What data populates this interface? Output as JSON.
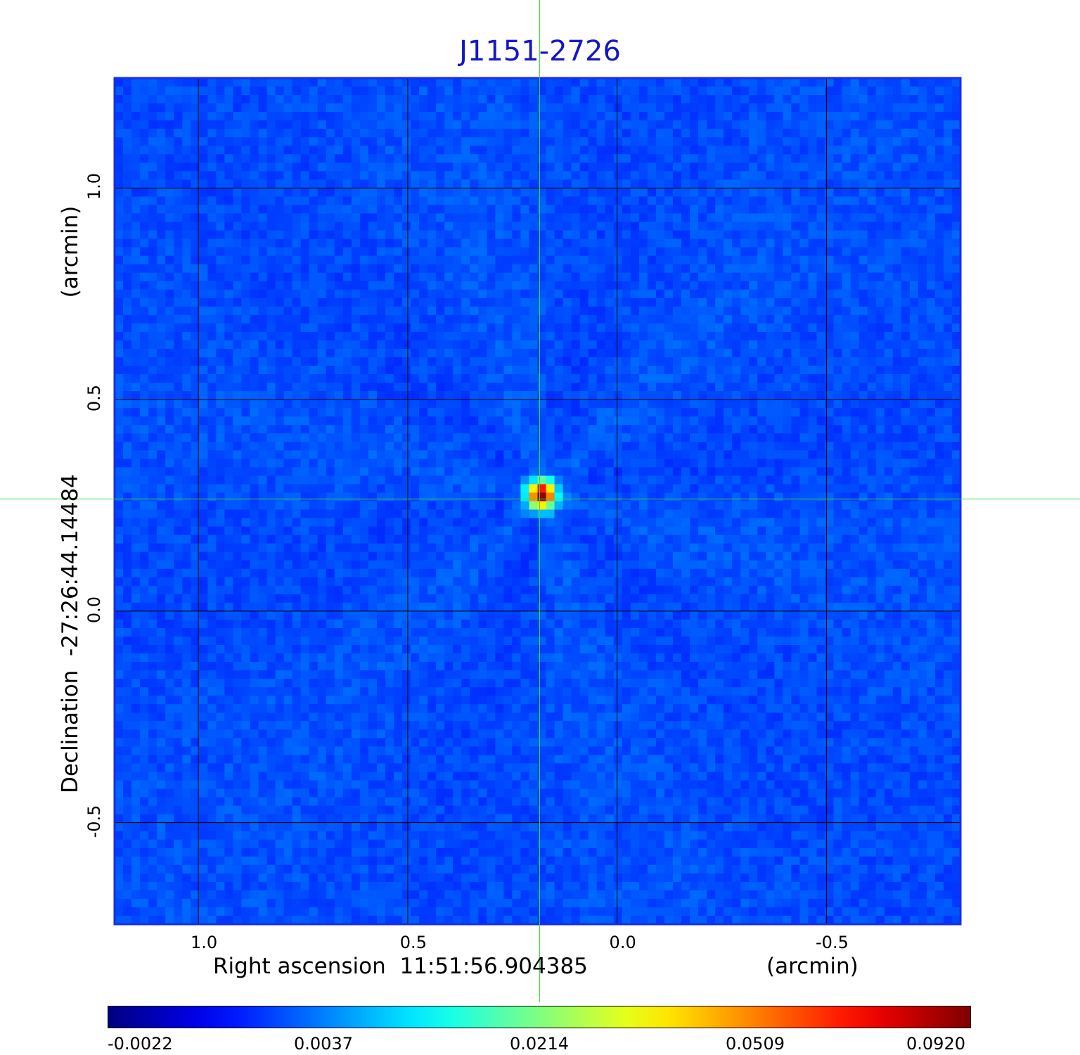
{
  "chart_data": {
    "type": "heatmap",
    "title": "J1151-2726",
    "xlabel": "Right ascension  11:51:56.904385",
    "xunit": "(arcmin)",
    "ylabel": "Declination  -27:26:44.14484",
    "yunit": "(arcmin)",
    "xlim": [
      1.2,
      -0.82
    ],
    "ylim": [
      -0.74,
      1.26
    ],
    "xticks": [
      {
        "value": 1.0,
        "label": "1.0"
      },
      {
        "value": 0.5,
        "label": "0.5"
      },
      {
        "value": 0.0,
        "label": "0.0"
      },
      {
        "value": -0.5,
        "label": "-0.5"
      }
    ],
    "yticks": [
      {
        "value": 1.0,
        "label": "1.0"
      },
      {
        "value": 0.5,
        "label": "0.5"
      },
      {
        "value": 0.0,
        "label": "0.0"
      },
      {
        "value": -0.5,
        "label": "-0.5"
      }
    ],
    "grid": true,
    "crosshair": {
      "x": 0.185,
      "y": 0.265,
      "color": "#33dd33"
    },
    "source": {
      "x": 0.18,
      "y": 0.275,
      "peak": 0.092
    },
    "background_level": 0.0,
    "colorbar": {
      "colormap": "jet",
      "ticks": [
        {
          "value": -0.0022,
          "label": "-0.0022"
        },
        {
          "value": 0.0037,
          "label": "0.0037"
        },
        {
          "value": 0.0214,
          "label": "0.0214"
        },
        {
          "value": 0.0509,
          "label": "0.0509"
        },
        {
          "value": 0.092,
          "label": "0.0920"
        }
      ]
    }
  }
}
